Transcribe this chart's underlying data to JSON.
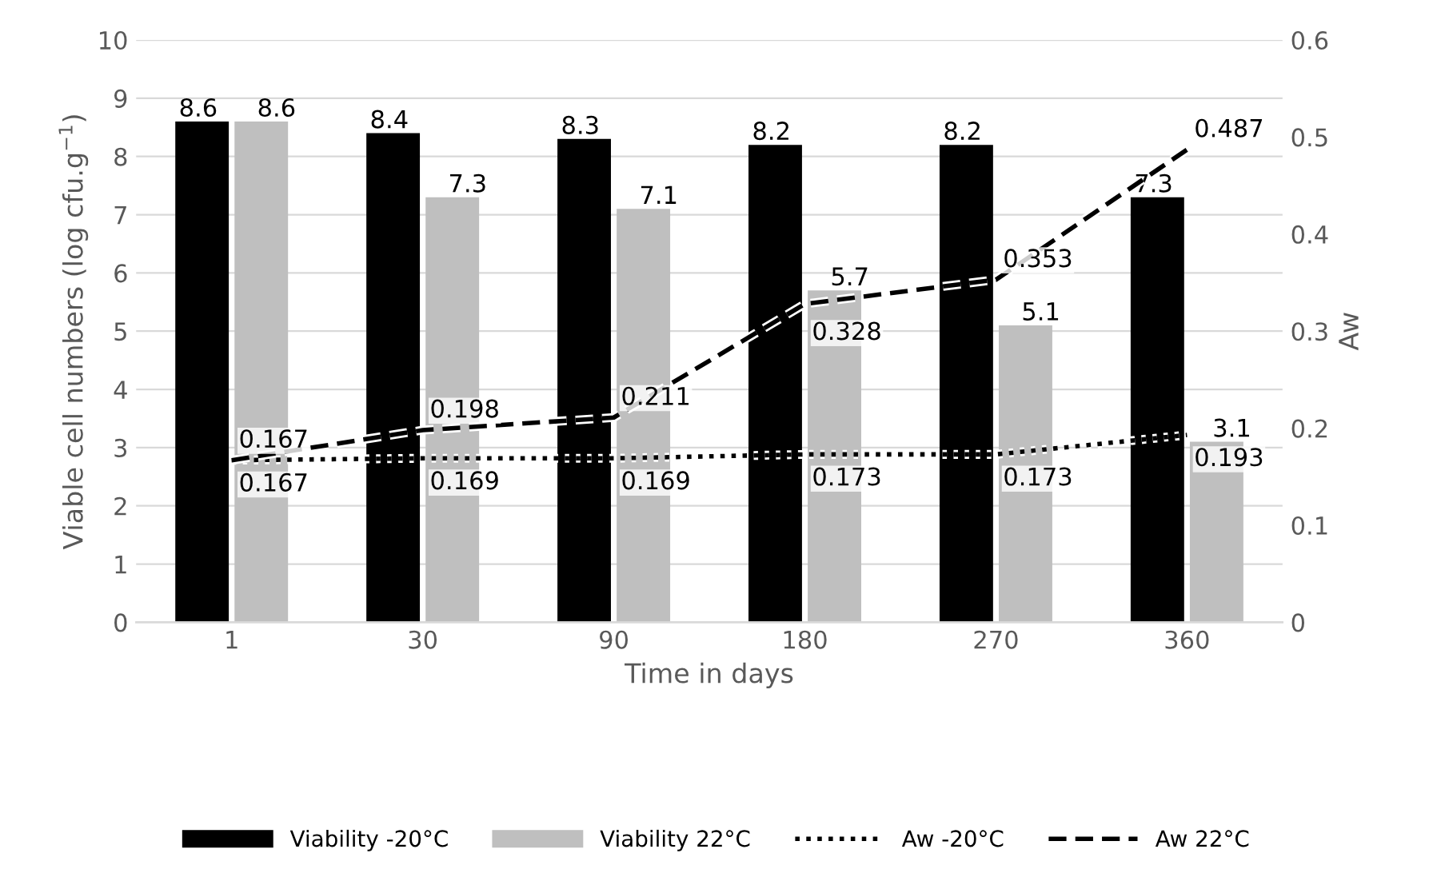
{
  "chart_data": {
    "type": "bar",
    "xlabel": "Time in days",
    "ylabel": "Viable cell numbers (log cfu.g$^{−1}$)",
    "y2label": "Aw",
    "categories": [
      "1",
      "30",
      "90",
      "180",
      "270",
      "360"
    ],
    "series": [
      {
        "name": "Viability -20°C",
        "color": "#000000",
        "values": [
          8.6,
          8.4,
          8.3,
          8.2,
          8.2,
          7.3
        ]
      },
      {
        "name": "Viability 22°C",
        "color": "#bfbfbf",
        "values": [
          8.6,
          7.3,
          7.1,
          5.7,
          5.1,
          3.1
        ]
      },
      {
        "name": "Aw -20°C",
        "type": "line",
        "axis": "y2",
        "line_style": "dotted",
        "color": "#000000",
        "values": [
          0.167,
          0.169,
          0.169,
          0.173,
          0.173,
          0.193
        ]
      },
      {
        "name": "Aw 22°C",
        "type": "line",
        "axis": "y2",
        "line_style": "dashed",
        "color": "#000000",
        "values": [
          0.167,
          0.198,
          0.211,
          0.328,
          0.353,
          0.487
        ]
      }
    ],
    "ylim": [
      0,
      10
    ],
    "yticks": [
      0,
      1,
      2,
      3,
      4,
      5,
      6,
      7,
      8,
      9,
      10
    ],
    "y2lim": [
      0,
      0.6
    ],
    "y2ticks": [
      0,
      0.1,
      0.2,
      0.3,
      0.4,
      0.5,
      0.6
    ],
    "grid": "y",
    "legend": "bottom",
    "data_labels": true
  }
}
